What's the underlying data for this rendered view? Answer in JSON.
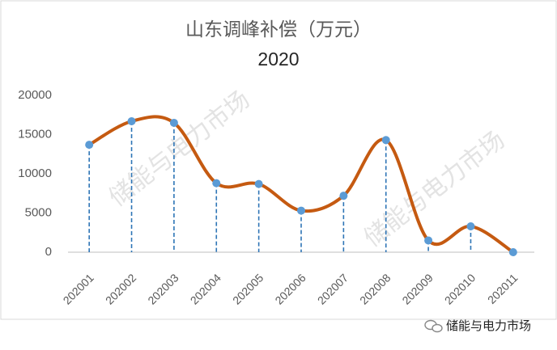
{
  "chart_data": {
    "type": "line",
    "title": "山东调峰补偿（万元）",
    "subtitle": "2020",
    "categories": [
      "202001",
      "202002",
      "202003",
      "202004",
      "202005",
      "202006",
      "202007",
      "202008",
      "202009",
      "202010",
      "202011"
    ],
    "values": [
      13700,
      16700,
      16500,
      8800,
      8700,
      5300,
      7200,
      14300,
      1500,
      3300,
      0
    ],
    "color": "#c55a11",
    "marker_color": "#5b9bd5",
    "drop_line_color": "#2e75b6",
    "smooth": true,
    "drop_lines": true,
    "ylim": [
      0,
      20000
    ],
    "yticks": [
      0,
      5000,
      10000,
      15000,
      20000
    ],
    "grid": false
  },
  "watermark": "储能与电力市场",
  "footer": "储能与电力市场"
}
